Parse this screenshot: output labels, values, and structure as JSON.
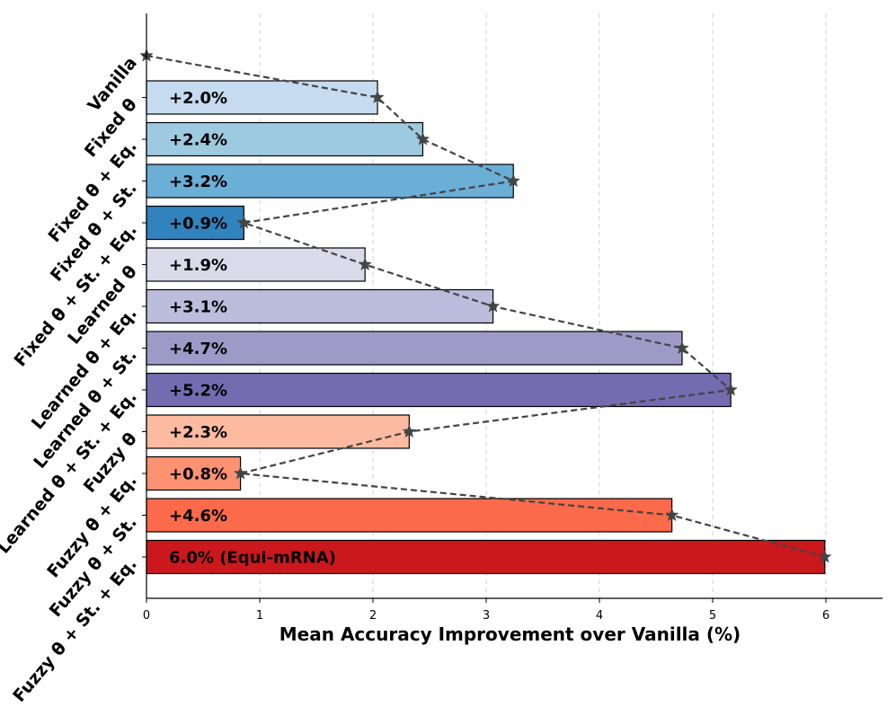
{
  "chart_data": {
    "type": "bar",
    "orientation": "horizontal",
    "title": "",
    "xlabel": "Mean Accuracy Improvement over Vanilla (%)",
    "ylabel": "",
    "xlim": [
      0,
      6.5
    ],
    "xticks": [
      0,
      1,
      2,
      3,
      4,
      5,
      6
    ],
    "grid": "vertical dashed",
    "categories": [
      "Vanilla",
      "Fixed θ",
      "Fixed θ + Eq.",
      "Fixed θ + St.",
      "Fixed θ + St. + Eq.",
      "Learned θ",
      "Learned θ + Eq.",
      "Learned θ + St.",
      "Learned θ + St. + Eq.",
      "Fuzzy θ",
      "Fuzzy θ + Eq.",
      "Fuzzy θ + St.",
      "Fuzzy θ + St. + Eq."
    ],
    "values": [
      0,
      2.04,
      2.44,
      3.24,
      0.86,
      1.93,
      3.06,
      4.73,
      5.16,
      2.32,
      0.83,
      4.64,
      5.99
    ],
    "bar_labels": [
      "",
      "+2.0%",
      "+2.4%",
      "+3.2%",
      "+0.9%",
      "+1.9%",
      "+3.1%",
      "+4.7%",
      "+5.2%",
      "+2.3%",
      "+0.8%",
      "+4.6%",
      "6.0% (Equi-mRNA)"
    ],
    "colors": [
      "",
      "#c6dbef",
      "#9ecae1",
      "#6baed6",
      "#3182bd",
      "#dadaeb",
      "#bcbddc",
      "#9e9ac8",
      "#756bb1",
      "#fcbba1",
      "#fc9272",
      "#fb6a4a",
      "#cb181d"
    ],
    "overlay_line": {
      "style": "dashed",
      "marker": "star",
      "color": "#444444",
      "values": [
        0,
        2.04,
        2.44,
        3.24,
        0.86,
        1.93,
        3.06,
        4.73,
        5.16,
        2.32,
        0.83,
        4.64,
        5.99
      ]
    }
  }
}
